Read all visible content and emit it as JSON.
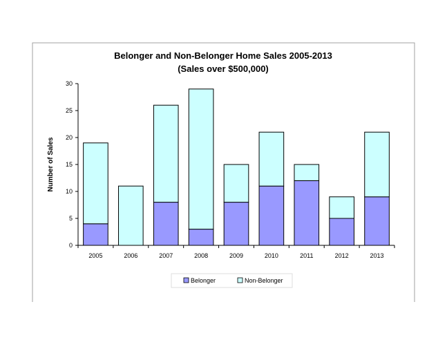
{
  "chart_data": {
    "type": "bar",
    "stacked": true,
    "title": "Belonger and Non-Belonger Home Sales 2005-2013",
    "subtitle": "(Sales over $500,000)",
    "xlabel": "",
    "ylabel": "Number of Sales",
    "ylim": [
      0,
      30
    ],
    "yticks": [
      0,
      5,
      10,
      15,
      20,
      25,
      30
    ],
    "grid": false,
    "legend_position": "bottom",
    "categories": [
      "2005",
      "2006",
      "2007",
      "2008",
      "2009",
      "2010",
      "2011",
      "2012",
      "2013"
    ],
    "series": [
      {
        "name": "Belonger",
        "color": "#9999FF",
        "values": [
          4,
          0,
          8,
          3,
          8,
          11,
          12,
          5,
          9
        ]
      },
      {
        "name": "Non-Belonger",
        "color": "#CCFFFF",
        "values": [
          15,
          11,
          18,
          26,
          7,
          10,
          3,
          4,
          12
        ]
      }
    ]
  }
}
